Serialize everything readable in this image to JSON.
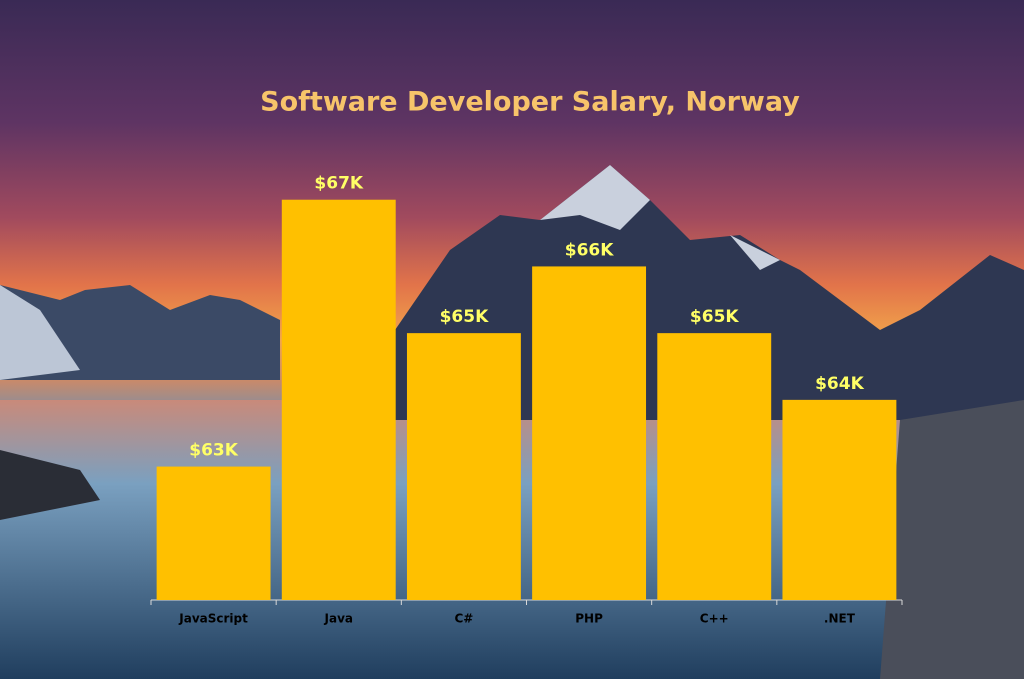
{
  "chart_data": {
    "type": "bar",
    "title": "Software Developer Salary, Norway",
    "categories": [
      "JavaScript",
      "Java",
      "C#",
      "PHP",
      "C++",
      ".NET"
    ],
    "values": [
      63,
      67,
      65,
      66,
      65,
      64
    ],
    "value_labels": [
      "$63K",
      "$67K",
      "$65K",
      "$66K",
      "$65K",
      "$64K"
    ],
    "color": "#ffc000",
    "ylim": [
      61,
      68
    ]
  }
}
